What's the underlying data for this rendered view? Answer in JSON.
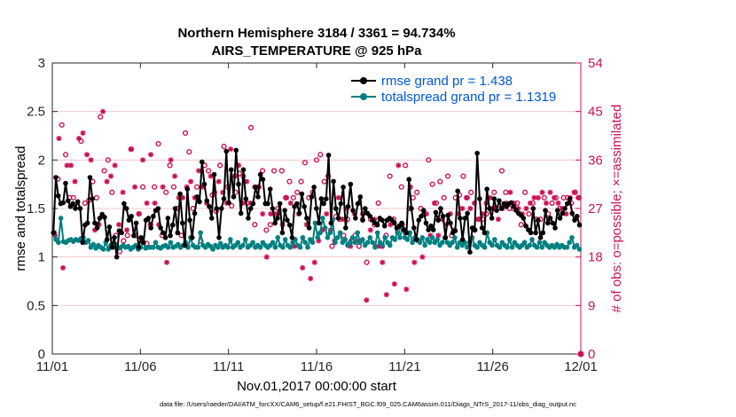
{
  "chart_data": {
    "type": "line",
    "title": "Northern Hemisphere 3184 / 3361 = 94.734%",
    "subtitle": "AIRS_TEMPERATURE @ 925 hPa",
    "xlabel": "Nov.01,2017 00:00:00 start",
    "ylabel": "rmse and totalspread",
    "y2label": "# of obs: o=possible; ×=assimilated",
    "footer": "data file: /Users/raeder/DAI/ATM_forcXX/CAM6_setup/f.e21.FHIST_BGC.f09_025.CAM6assim.011/Diags_NTrS_2017-11/obs_diag_output.nc",
    "xlim": [
      0,
      30
    ],
    "ylim": [
      0,
      3
    ],
    "y2lim": [
      0,
      54
    ],
    "xticks": [
      0,
      5,
      10,
      15,
      20,
      25,
      30
    ],
    "xtick_labels": [
      "11/01",
      "11/06",
      "11/11",
      "11/16",
      "11/21",
      "11/26",
      "12/01"
    ],
    "yticks": [
      0,
      0.5,
      1,
      1.5,
      2,
      2.5,
      3
    ],
    "ytick_labels": [
      "0",
      "0.5",
      "1",
      "1.5",
      "2",
      "2.5",
      "3"
    ],
    "y2ticks": [
      0,
      9,
      18,
      27,
      36,
      45,
      54
    ],
    "y2tick_labels": [
      "0",
      "9",
      "18",
      "27",
      "36",
      "45",
      "54"
    ],
    "legend": [
      "rmse grand pr = 1.438",
      "totalspread grand pr = 1.1319"
    ],
    "colors": {
      "rmse": "#000000",
      "spread": "#008080",
      "obs": "#cc1155",
      "legend_text": "#0057d9"
    },
    "series": [
      {
        "name": "rmse",
        "values": [
          1.25,
          1.82,
          1.63,
          1.55,
          1.56,
          1.76,
          1.58,
          1.52,
          1.55,
          1.5,
          1.57,
          1.5,
          1.15,
          1.33,
          1.35,
          1.82,
          1.6,
          1.35,
          1.3,
          1.4,
          1.44,
          1.41,
          1.18,
          1.31,
          1.1,
          1.2,
          1.0,
          1.27,
          1.25,
          1.55,
          1.5,
          1.38,
          1.42,
          1.22,
          1.35,
          1.1,
          1.2,
          1.15,
          1.38,
          1.4,
          1.3,
          1.42,
          1.48,
          1.5,
          1.3,
          1.25,
          1.2,
          1.4,
          1.22,
          1.33,
          1.5,
          1.25,
          1.65,
          1.35,
          1.12,
          1.7,
          1.38,
          1.2,
          1.45,
          1.62,
          1.57,
          1.98,
          1.75,
          1.58,
          1.52,
          1.4,
          1.85,
          1.5,
          1.2,
          1.5,
          1.6,
          2.09,
          1.56,
          1.9,
          1.62,
          2.1,
          1.75,
          1.45,
          1.9,
          1.6,
          1.4,
          1.5,
          1.55,
          1.72,
          1.62,
          1.85,
          1.8,
          1.55,
          1.55,
          1.7,
          1.5,
          1.35,
          1.4,
          1.55,
          1.25,
          1.48,
          1.38,
          1.33,
          1.2,
          1.52,
          1.55,
          1.45,
          1.65,
          1.52,
          1.4,
          1.3,
          1.62,
          1.72,
          1.5,
          1.35,
          1.6,
          1.55,
          1.6,
          2.05,
          1.35,
          1.78,
          1.5,
          1.4,
          1.55,
          1.72,
          1.3,
          1.52,
          1.75,
          1.48,
          1.4,
          1.55,
          1.62,
          1.38,
          1.5,
          1.45,
          1.42,
          1.38,
          1.35,
          1.33,
          1.4,
          1.38,
          1.32,
          1.38,
          1.4,
          1.38,
          1.35,
          1.3,
          1.32,
          1.35,
          1.28,
          1.25,
          1.8,
          1.5,
          1.3,
          1.18,
          1.38,
          1.42,
          1.48,
          1.35,
          1.28,
          1.32,
          1.28,
          1.46,
          1.38,
          1.5,
          1.42,
          1.2,
          1.43,
          1.35,
          1.25,
          1.27,
          1.68,
          1.4,
          1.18,
          1.4,
          1.45,
          1.05,
          1.3,
          1.28,
          2.07,
          1.6,
          1.3,
          1.25,
          1.7,
          1.5,
          1.4,
          1.6,
          1.48,
          1.58,
          1.5,
          1.55,
          1.52,
          1.55,
          1.56,
          1.52,
          1.48,
          1.45,
          1.43,
          1.4,
          1.32,
          1.28,
          1.25,
          1.5,
          1.25,
          1.38,
          1.2,
          1.25,
          1.48,
          1.35,
          1.4,
          1.35,
          1.3,
          1.48,
          1.4,
          1.45,
          1.5,
          1.55,
          1.6,
          1.45,
          1.38,
          1.42,
          1.33
        ]
      },
      {
        "name": "totalspread",
        "values": [
          1.25,
          1.18,
          1.15,
          1.4,
          1.16,
          1.15,
          1.17,
          1.18,
          1.16,
          1.18,
          1.17,
          1.19,
          1.2,
          1.15,
          1.17,
          1.1,
          1.13,
          1.09,
          1.12,
          1.1,
          1.08,
          1.15,
          1.08,
          1.12,
          1.1,
          1.13,
          1.09,
          1.1,
          1.12,
          1.1,
          1.11,
          1.08,
          1.1,
          1.12,
          1.08,
          1.1,
          1.15,
          1.09,
          1.1,
          1.1,
          1.1,
          1.15,
          1.1,
          1.09,
          1.11,
          1.12,
          1.1,
          1.15,
          1.1,
          1.11,
          1.13,
          1.1,
          1.12,
          1.15,
          1.1,
          1.2,
          1.12,
          1.1,
          1.1,
          1.25,
          1.12,
          1.1,
          1.13,
          1.11,
          1.08,
          1.12,
          1.1,
          1.14,
          1.1,
          1.12,
          1.1,
          1.18,
          1.1,
          1.12,
          1.15,
          1.1,
          1.12,
          1.18,
          1.1,
          1.12,
          1.15,
          1.1,
          1.12,
          1.1,
          1.15,
          1.12,
          1.1,
          1.12,
          1.15,
          1.1,
          1.2,
          1.12,
          1.1,
          1.18,
          1.12,
          1.1,
          1.15,
          1.18,
          1.12,
          1.1,
          1.2,
          1.15,
          1.1,
          1.18,
          1.15,
          1.35,
          1.2,
          1.25,
          1.4,
          1.3,
          1.2,
          1.25,
          1.38,
          1.15,
          1.2,
          1.25,
          1.15,
          1.18,
          1.12,
          1.15,
          1.2,
          1.15,
          1.25,
          1.15,
          1.18,
          1.12,
          1.15,
          1.2,
          1.15,
          1.1,
          1.25,
          1.15,
          1.12,
          1.2,
          1.15,
          1.12,
          1.2,
          1.18,
          1.25,
          1.2,
          1.3,
          1.2,
          1.18,
          1.25,
          1.15,
          1.2,
          1.18,
          1.15,
          1.2,
          1.12,
          1.18,
          1.15,
          1.2,
          1.15,
          1.18,
          1.12,
          1.15,
          1.2,
          1.15,
          1.12,
          1.15,
          1.2,
          1.1,
          1.15,
          1.12,
          1.15,
          1.1,
          1.15,
          1.2,
          1.12,
          1.1,
          1.15,
          1.12,
          1.1,
          1.25,
          1.15,
          1.12,
          1.18,
          1.12,
          1.1,
          1.15,
          1.12,
          1.1,
          1.18,
          1.1,
          1.15,
          1.12,
          1.1,
          1.12,
          1.15,
          1.1,
          1.12,
          1.18,
          1.12,
          1.1,
          1.15,
          1.1,
          1.15,
          1.12,
          1.1,
          1.12,
          1.1,
          1.13,
          1.1,
          1.12,
          1.1,
          1.1,
          1.15,
          1.2,
          1.1,
          1.12,
          1.08
        ]
      }
    ],
    "obs_possible": [
      22.5,
      32.5,
      42.5,
      37,
      29,
      29,
      27.5,
      39.5,
      28,
      28.5,
      32,
      29,
      44,
      34,
      36,
      30,
      22,
      19,
      21,
      22,
      38,
      22,
      26,
      31,
      20.5,
      24,
      31,
      39,
      22,
      30,
      35,
      31,
      27,
      22,
      41,
      37.5,
      27,
      31,
      21,
      35,
      34,
      29.5,
      26.5,
      35,
      38.5,
      31,
      27.5,
      30,
      33.5,
      33,
      28,
      42,
      24,
      31,
      34,
      23,
      24,
      34,
      27,
      34,
      29,
      32,
      29,
      30,
      32,
      35.5,
      29,
      30,
      36,
      37,
      32,
      33,
      20,
      25.5,
      25,
      22,
      25,
      21,
      22,
      20,
      26,
      17,
      25,
      24,
      28,
      20,
      22,
      33,
      25,
      23,
      31,
      35,
      27,
      29,
      30,
      27,
      26,
      36,
      31.5,
      28,
      32,
      29,
      33,
      22,
      29,
      29.5,
      33,
      29,
      30,
      23,
      25,
      25,
      26,
      27,
      30,
      27,
      34,
      30,
      27,
      27,
      28,
      24,
      30,
      26,
      28,
      25,
      25,
      29,
      26,
      28,
      29,
      27,
      29,
      29,
      28,
      30,
      29
    ],
    "obs_assimilated": [
      22,
      40,
      16,
      35,
      35,
      32,
      40,
      41,
      37,
      36,
      23,
      24,
      45,
      32,
      33,
      35,
      24,
      30,
      23,
      38,
      31,
      26,
      36,
      28,
      37,
      28,
      24,
      31,
      17,
      36,
      33,
      29,
      29,
      31,
      32,
      29,
      34,
      31,
      28,
      33,
      30,
      32,
      30,
      28,
      38,
      33,
      35,
      28,
      32,
      28,
      31,
      31,
      26,
      18,
      26,
      26,
      26,
      24,
      29,
      28,
      20,
      26,
      16,
      24,
      14,
      17,
      21,
      23,
      26,
      23,
      21,
      29,
      25,
      27,
      20,
      26,
      21,
      25,
      10,
      23,
      25,
      20,
      17,
      11,
      24,
      13,
      35,
      24,
      12,
      31,
      17,
      21,
      18,
      26,
      22,
      28,
      22,
      25,
      24,
      26,
      23,
      26,
      27,
      29,
      27,
      28,
      25,
      26,
      28,
      29,
      27,
      25,
      27,
      28,
      30,
      28,
      27,
      26,
      27,
      28,
      29,
      29,
      30,
      28,
      30,
      29,
      28,
      27,
      26,
      29,
      30,
      29
    ],
    "annotations": []
  }
}
